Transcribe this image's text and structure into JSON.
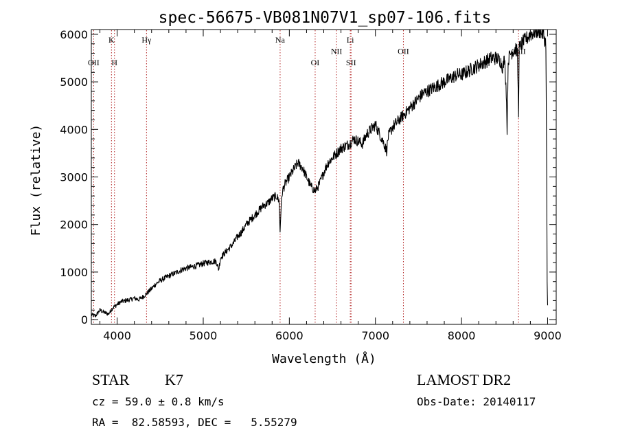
{
  "chart_data": {
    "type": "line",
    "title": "spec-56675-VB081N07V1_sp07-106.fits",
    "xlabel": "Wavelength (Å)",
    "ylabel": "Flux (relative)",
    "xlim": [
      3700,
      9100
    ],
    "ylim": [
      -100,
      6100
    ],
    "xticks": [
      4000,
      5000,
      6000,
      7000,
      8000,
      9000
    ],
    "yticks": [
      0,
      1000,
      2000,
      3000,
      4000,
      5000,
      6000
    ],
    "grid": false,
    "line_color": "#000000",
    "series": [
      {
        "x": [
          3700,
          3750,
          3800,
          3850,
          3900,
          3950,
          4000,
          4050,
          4100,
          4150,
          4200,
          4250,
          4300,
          4350,
          4400,
          4450,
          4500,
          4550,
          4600,
          4650,
          4700,
          4750,
          4800,
          4850,
          4900,
          4950,
          5000,
          5050,
          5100,
          5150,
          5180,
          5200,
          5250,
          5300,
          5350,
          5400,
          5450,
          5500,
          5550,
          5600,
          5650,
          5700,
          5750,
          5800,
          5850,
          5880,
          5893,
          5905,
          5920,
          5950,
          6000,
          6050,
          6100,
          6150,
          6200,
          6250,
          6300,
          6350,
          6400,
          6450,
          6500,
          6550,
          6600,
          6650,
          6700,
          6750,
          6800,
          6850,
          6900,
          6950,
          7000,
          7050,
          7100,
          7130,
          7150,
          7200,
          7250,
          7300,
          7350,
          7400,
          7450,
          7500,
          7550,
          7600,
          7650,
          7700,
          7750,
          7800,
          7850,
          7900,
          7950,
          8000,
          8050,
          8100,
          8150,
          8200,
          8250,
          8300,
          8350,
          8400,
          8450,
          8480,
          8500,
          8520,
          8530,
          8542,
          8550,
          8570,
          8600,
          8630,
          8650,
          8662,
          8670,
          8700,
          8750,
          8800,
          8850,
          8900,
          8950,
          8980,
          8990,
          8995,
          9000
        ],
        "y": [
          100,
          80,
          200,
          150,
          120,
          250,
          320,
          380,
          400,
          420,
          450,
          420,
          480,
          560,
          650,
          750,
          820,
          870,
          920,
          960,
          1000,
          1050,
          1080,
          1100,
          1120,
          1150,
          1180,
          1200,
          1220,
          1230,
          1050,
          1300,
          1400,
          1500,
          1600,
          1750,
          1850,
          2000,
          2100,
          2200,
          2300,
          2400,
          2450,
          2550,
          2600,
          2500,
          1850,
          2400,
          2700,
          2850,
          3000,
          3150,
          3300,
          3200,
          3000,
          2800,
          2700,
          2850,
          3100,
          3300,
          3400,
          3500,
          3600,
          3650,
          3700,
          3800,
          3750,
          3700,
          3900,
          4000,
          4100,
          3900,
          3700,
          3550,
          3850,
          4050,
          4150,
          4250,
          4350,
          4450,
          4550,
          4650,
          4750,
          4800,
          4850,
          4900,
          4950,
          5000,
          5050,
          5100,
          5150,
          5150,
          5200,
          5250,
          5300,
          5350,
          5400,
          5450,
          5500,
          5500,
          5450,
          5300,
          5500,
          4800,
          4000,
          5400,
          5500,
          5600,
          5650,
          5700,
          5600,
          4350,
          5700,
          5800,
          5900,
          6000,
          6050,
          6080,
          6000,
          5800,
          3000,
          800,
          300
        ]
      }
    ],
    "lines": [
      {
        "label": "OII",
        "wavelength": 3727,
        "row": 2
      },
      {
        "label": "K",
        "wavelength": 3934,
        "row": 1
      },
      {
        "label": "H",
        "wavelength": 3969,
        "row": 2
      },
      {
        "label": "Hγ",
        "wavelength": 4341,
        "row": 1
      },
      {
        "label": "Na",
        "wavelength": 5893,
        "row": 1
      },
      {
        "label": "OI",
        "wavelength": 6300,
        "row": 2
      },
      {
        "label": "NII",
        "wavelength": 6548,
        "row": 1.5
      },
      {
        "label": "Li",
        "wavelength": 6708,
        "row": 1
      },
      {
        "label": "SII",
        "wavelength": 6717,
        "row": 2
      },
      {
        "label": "OII",
        "wavelength": 7325,
        "row": 1.5
      },
      {
        "label": "CaII",
        "wavelength": 8662,
        "row": 1.5
      }
    ],
    "line_marker_color": "#b22222"
  },
  "info": {
    "object_class": "STAR",
    "subclass": "K7",
    "survey": "LAMOST DR2",
    "redshift": "cz = 59.0 ± 0.8 km/s",
    "obs_date": "Obs-Date: 20140117",
    "coords": "RA =  82.58593, DEC =   5.55279"
  }
}
